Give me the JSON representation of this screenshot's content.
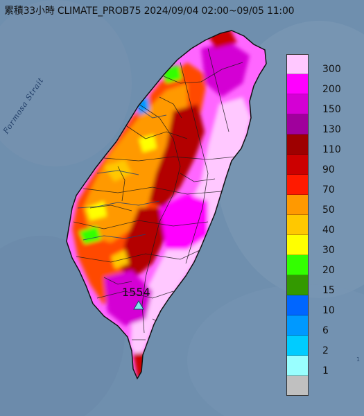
{
  "title": "累積33小時 CLIMATE_PROB75 2024/09/04 02:00~09/05 11:00",
  "map_labels": {
    "strait": "Formosa Strait",
    "max_station_value": "1554",
    "edge_mark": "1"
  },
  "legend": {
    "classes": [
      {
        "label": "300",
        "color": "#ffc8ff"
      },
      {
        "label": "200",
        "color": "#ff00ff"
      },
      {
        "label": "150",
        "color": "#d400d4"
      },
      {
        "label": "130",
        "color": "#a0009c"
      },
      {
        "label": "110",
        "color": "#9e0000"
      },
      {
        "label": "90",
        "color": "#cc0000"
      },
      {
        "label": "70",
        "color": "#ff1a00"
      },
      {
        "label": "50",
        "color": "#ff9900"
      },
      {
        "label": "40",
        "color": "#ffc800"
      },
      {
        "label": "30",
        "color": "#ffff00"
      },
      {
        "label": "20",
        "color": "#33ff00"
      },
      {
        "label": "15",
        "color": "#339900"
      },
      {
        "label": "10",
        "color": "#0066ff"
      },
      {
        "label": "6",
        "color": "#0099ff"
      },
      {
        "label": "2",
        "color": "#00ccff"
      },
      {
        "label": "1",
        "color": "#99ffff"
      },
      {
        "label": "",
        "color": "#c0c0c0"
      }
    ]
  },
  "colors": {
    "sea": "#6f8fae",
    "station_marker": "#7fe8e8"
  }
}
